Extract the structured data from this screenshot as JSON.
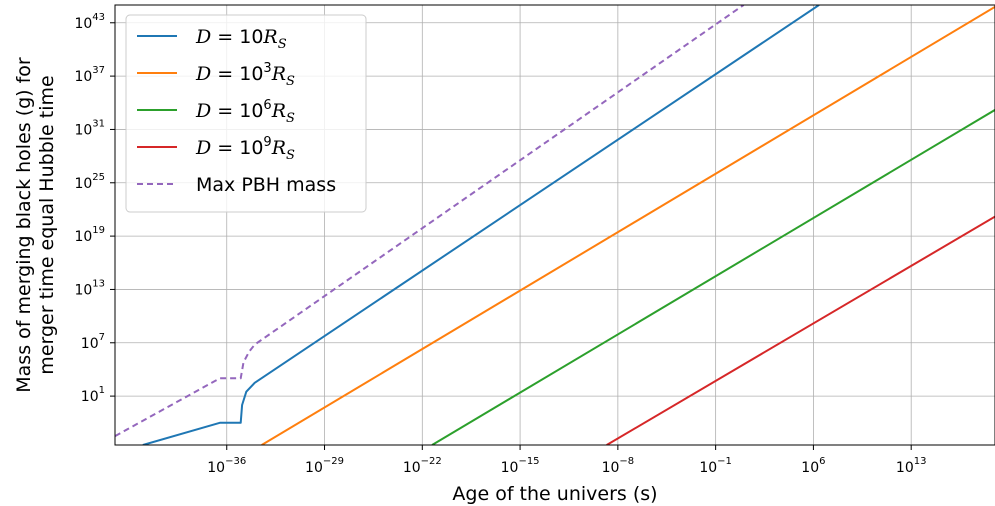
{
  "chart_data": {
    "type": "line",
    "xlabel": "Age of the univers (s)",
    "ylabel_lines": [
      "Mass of merging black holes (g) for",
      "merger time equal Hubble time"
    ],
    "x_scale": "log",
    "y_scale": "log",
    "xlim_log10": [
      -44,
      19
    ],
    "ylim_log10": [
      -4.5,
      45
    ],
    "grid": true,
    "legend_position": "upper-left",
    "x_ticks": [
      {
        "exp": -36,
        "base": "10",
        "power": "−36"
      },
      {
        "exp": -29,
        "base": "10",
        "power": "−29"
      },
      {
        "exp": -22,
        "base": "10",
        "power": "−22"
      },
      {
        "exp": -15,
        "base": "10",
        "power": "−15"
      },
      {
        "exp": -8,
        "base": "10",
        "power": "−8"
      },
      {
        "exp": -1,
        "base": "10",
        "power": "−1"
      },
      {
        "exp": 6,
        "base": "10",
        "power": "6"
      },
      {
        "exp": 13,
        "base": "10",
        "power": "13"
      }
    ],
    "y_ticks": [
      {
        "exp": 1,
        "base": "10",
        "power": "1"
      },
      {
        "exp": 7,
        "base": "10",
        "power": "7"
      },
      {
        "exp": 13,
        "base": "10",
        "power": "13"
      },
      {
        "exp": 19,
        "base": "10",
        "power": "19"
      },
      {
        "exp": 25,
        "base": "10",
        "power": "25"
      },
      {
        "exp": 31,
        "base": "10",
        "power": "31"
      },
      {
        "exp": 37,
        "base": "10",
        "power": "37"
      },
      {
        "exp": 43,
        "base": "10",
        "power": "43"
      }
    ],
    "series": [
      {
        "name": "D = 10R_S",
        "legend": {
          "pre": "D",
          "eq": " = 10",
          "sup": "",
          "post": "R",
          "sub": "S"
        },
        "color": "#1f77b4",
        "dash": "solid",
        "points_log10": [
          [
            -42,
            -4.5
          ],
          [
            -36.5,
            -2
          ],
          [
            -35.0,
            -2
          ],
          [
            -34.9,
            0
          ],
          [
            -34.6,
            1.5
          ],
          [
            -34,
            2.5
          ],
          [
            6.4,
            45
          ]
        ]
      },
      {
        "name": "D = 10^3R_S",
        "legend": {
          "pre": "D",
          "eq": " = 10",
          "sup": "3",
          "post": "R",
          "sub": "S"
        },
        "color": "#ff7f0e",
        "dash": "solid",
        "points_log10": [
          [
            -33.5,
            -4.5
          ],
          [
            19,
            44.8
          ]
        ]
      },
      {
        "name": "D = 10^6R_S",
        "legend": {
          "pre": "D",
          "eq": " = 10",
          "sup": "6",
          "post": "R",
          "sub": "S"
        },
        "color": "#2ca02c",
        "dash": "solid",
        "points_log10": [
          [
            -21.3,
            -4.5
          ],
          [
            19,
            33.2
          ]
        ]
      },
      {
        "name": "D = 10^9R_S",
        "legend": {
          "pre": "D",
          "eq": " = 10",
          "sup": "9",
          "post": "R",
          "sub": "S"
        },
        "color": "#d62728",
        "dash": "solid",
        "points_log10": [
          [
            -8.8,
            -4.5
          ],
          [
            19,
            21.2
          ]
        ]
      },
      {
        "name": "Max PBH mass",
        "legend": {
          "text": "Max PBH mass"
        },
        "color": "#9467bd",
        "dash": "dashed",
        "points_log10": [
          [
            -44,
            -3.5
          ],
          [
            -36.5,
            3
          ],
          [
            -35.0,
            3
          ],
          [
            -34.8,
            4.8
          ],
          [
            -34.4,
            6
          ],
          [
            -34,
            6.8
          ],
          [
            1,
            45
          ]
        ]
      }
    ]
  }
}
